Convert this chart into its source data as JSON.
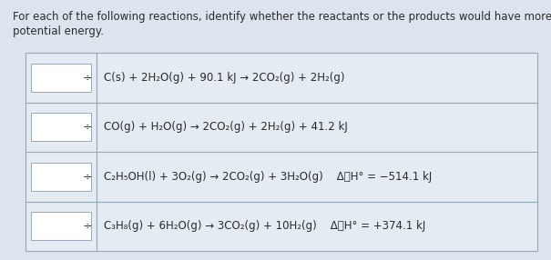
{
  "title_line1": "For each of the following reactions, identify whether the reactants or the products would have more",
  "title_line2": "potential energy.",
  "bg_color": "#dce5ed",
  "table_bg": "#e4ebf2",
  "cell_bg": "#ffffff",
  "border_color": "#9aa8b5",
  "text_color": "#2a2a2a",
  "font_size": 8.5,
  "title_font_size": 8.5,
  "reactions": [
    "C(s) + 2H₂O(g) + 90.1 kJ → 2CO₂(g) + 2H₂(g)",
    "CO(g) + H₂O(g) → 2CO₂(g) + 2H₂(g) + 41.2 kJ",
    "C₂H₅OH(l) + 3O₂(g) → 2CO₂(g) + 3H₂O(g)    ΔⰉH° = −514.1 kJ",
    "C₃H₈(g) + 6H₂O(g) → 3CO₂(g) + 10H₂(g)    ΔⰉH° = +374.1 kJ"
  ],
  "fig_width": 6.05,
  "fig_height": 2.86,
  "dpi": 100
}
